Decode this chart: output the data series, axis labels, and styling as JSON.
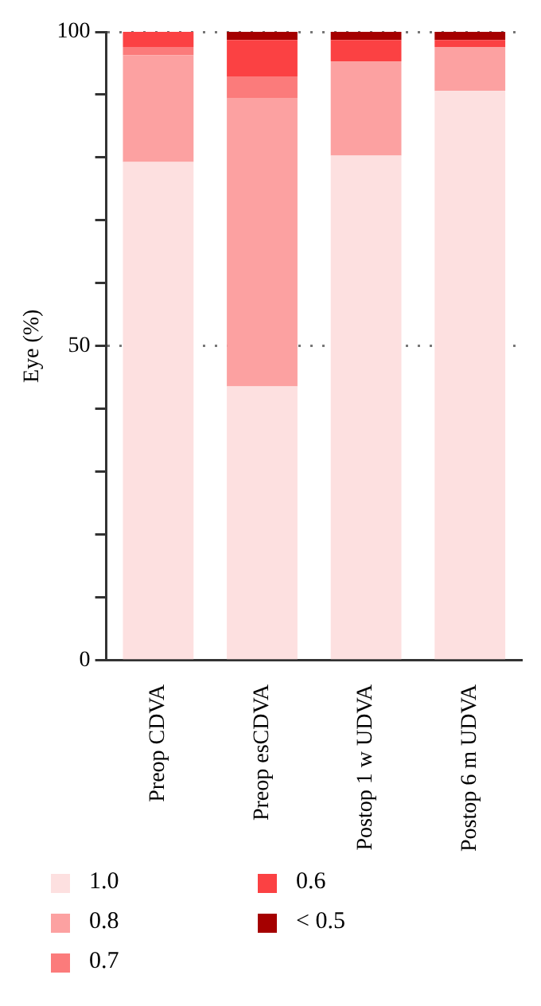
{
  "chart_data": {
    "type": "bar",
    "stacked": true,
    "ylabel": "Eye (%)",
    "categories": [
      "Preop CDVA",
      "Preop esCDVA",
      "Postop 1 w UDVA",
      "Postop 6 m UDVA"
    ],
    "series": [
      {
        "name": "1.0",
        "color": "#fde0e0",
        "values": [
          79.3,
          43.6,
          80.3,
          90.6
        ]
      },
      {
        "name": "0.8",
        "color": "#fca1a1",
        "values": [
          17.0,
          45.9,
          15.0,
          7.0
        ]
      },
      {
        "name": "0.7",
        "color": "#fb7b7b",
        "values": [
          1.3,
          3.4,
          0,
          0
        ]
      },
      {
        "name": "0.6",
        "color": "#fb4143",
        "values": [
          2.4,
          5.8,
          3.4,
          1.1
        ]
      },
      {
        "name": "< 0.5",
        "color": "#a50000",
        "values": [
          0,
          1.3,
          1.3,
          1.3
        ]
      }
    ],
    "ylim": [
      0,
      100
    ],
    "yticks": [
      0,
      {
        "value": 10,
        "label": null
      },
      {
        "value": 20,
        "label": null
      },
      {
        "value": 30,
        "label": null
      },
      {
        "value": 40,
        "label": null
      },
      50,
      {
        "value": 60,
        "label": null
      },
      {
        "value": 70,
        "label": null
      },
      {
        "value": 80,
        "label": null
      },
      {
        "value": 90,
        "label": null
      },
      100
    ],
    "grid": "y",
    "legend": "bottom"
  }
}
